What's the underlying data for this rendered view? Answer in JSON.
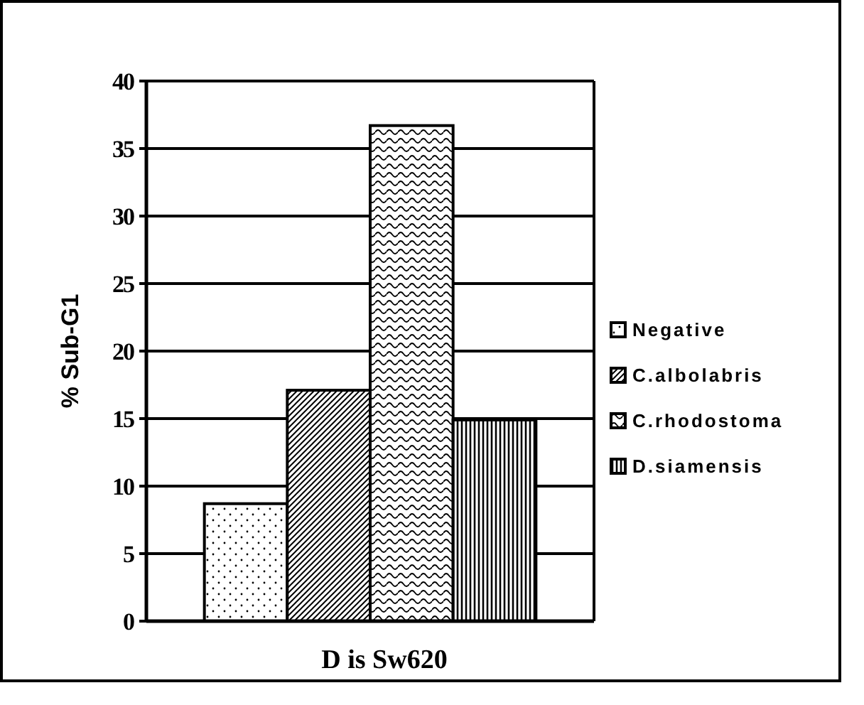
{
  "chart_data": {
    "type": "bar",
    "xlabel": "D is Sw620",
    "ylabel": "% Sub-G1",
    "categories": [
      null
    ],
    "series": [
      {
        "name": "Negative",
        "color": "#000000",
        "values": [
          8.7
        ]
      },
      {
        "name": "C.albolabris",
        "color": "#000000",
        "values": [
          17.1
        ]
      },
      {
        "name": "C.rhodostoma",
        "color": "#000000",
        "values": [
          36.7
        ]
      },
      {
        "name": "D.siamensis",
        "color": "#000000",
        "values": [
          14.9
        ]
      }
    ],
    "ylim": [
      0,
      40
    ],
    "yticks": [
      0,
      5,
      10,
      15,
      20,
      25,
      30,
      35,
      40
    ],
    "grid": "y",
    "legend": "right"
  }
}
